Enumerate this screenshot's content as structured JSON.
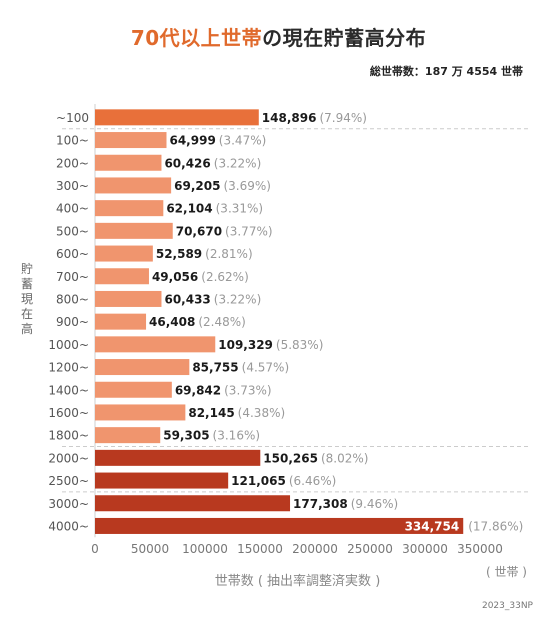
{
  "title_highlight": "70代以上世帯",
  "title_rest": "の現在貯蓄高分布",
  "total_label": "総世帯数：187 万 4554 世帯",
  "y_axis_label": [
    "貯",
    "蓄",
    "現",
    "在",
    "高"
  ],
  "x_axis_title": "世帯数 ( 抽出率調整済実数 )",
  "x_axis_unit": "( 世帯 )",
  "source_note": "2023_33NP",
  "colors": {
    "top": "#e8703a",
    "light": "#f0956e",
    "dark": "#b8391f"
  },
  "chart_data": {
    "type": "bar",
    "orientation": "horizontal",
    "categories": [
      "~100",
      "100~",
      "200~",
      "300~",
      "400~",
      "500~",
      "600~",
      "700~",
      "800~",
      "900~",
      "1000~",
      "1200~",
      "1400~",
      "1600~",
      "1800~",
      "2000~",
      "2500~",
      "3000~",
      "4000~"
    ],
    "values": [
      148896,
      64999,
      60426,
      69205,
      62104,
      70670,
      52589,
      49056,
      60433,
      46408,
      109329,
      85755,
      69842,
      82145,
      59305,
      150265,
      121065,
      177308,
      334754
    ],
    "value_labels": [
      "148,896",
      "64,999",
      "60,426",
      "69,205",
      "62,104",
      "70,670",
      "52,589",
      "49,056",
      "60,433",
      "46,408",
      "109,329",
      "85,755",
      "69,842",
      "82,145",
      "59,305",
      "150,265",
      "121,065",
      "177,308",
      "334,754"
    ],
    "percent_labels": [
      "(7.94%)",
      "(3.47%)",
      "(3.22%)",
      "(3.69%)",
      "(3.31%)",
      "(3.77%)",
      "(2.81%)",
      "(2.62%)",
      "(3.22%)",
      "(2.48%)",
      "(5.83%)",
      "(4.57%)",
      "(3.73%)",
      "(4.38%)",
      "(3.16%)",
      "(8.02%)",
      "(6.46%)",
      "(9.46%)",
      "(17.86%)"
    ],
    "color_groups": [
      "top",
      "light",
      "light",
      "light",
      "light",
      "light",
      "light",
      "light",
      "light",
      "light",
      "light",
      "light",
      "light",
      "light",
      "light",
      "dark",
      "dark",
      "dark",
      "dark"
    ],
    "xlim": [
      0,
      350000
    ],
    "xticks": [
      "0",
      "50000",
      "100000",
      "150000",
      "200000",
      "250000",
      "300000",
      "350000"
    ],
    "xtick_values": [
      0,
      50000,
      100000,
      150000,
      200000,
      250000,
      300000,
      350000
    ],
    "xlabel": "世帯数 ( 抽出率調整済実数 )",
    "ylabel": "貯蓄現在高",
    "grid": false,
    "separators_after": [
      "~100",
      "1800~",
      "2500~"
    ]
  }
}
